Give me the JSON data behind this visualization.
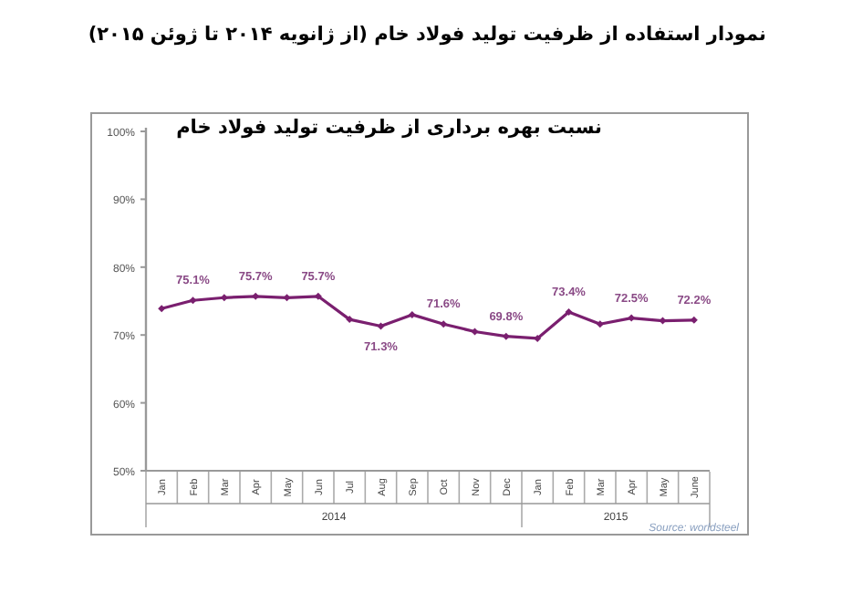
{
  "chart_data": {
    "type": "line",
    "title": "نمودار استفاده از ظرفیت تولید فولاد خام (از ژانویه ۲۰۱۴ تا ژوئن ۲۰۱۵)",
    "subtitle": "نسبت بهره برداری از ظرفیت تولید فولاد خام",
    "categories": [
      "Jan",
      "Feb",
      "Mar",
      "Apr",
      "May",
      "Jun",
      "Jul",
      "Aug",
      "Sep",
      "Oct",
      "Nov",
      "Dec",
      "Jan",
      "Feb",
      "Mar",
      "Apr",
      "May",
      "June"
    ],
    "series": [
      {
        "color": "#7a1f6f",
        "values": [
          73.9,
          75.1,
          75.5,
          75.7,
          75.5,
          75.7,
          72.3,
          71.3,
          73.0,
          71.6,
          70.5,
          69.8,
          69.5,
          73.4,
          71.6,
          72.5,
          72.1,
          72.2
        ],
        "value_labels": [
          null,
          "75.1%",
          null,
          "75.7%",
          null,
          "75.7%",
          null,
          "71.3%",
          null,
          "71.6%",
          null,
          "69.8%",
          null,
          "73.4%",
          null,
          "72.5%",
          null,
          "72.2%"
        ]
      }
    ],
    "ylim": [
      50,
      100
    ],
    "yticks": [
      {
        "value": 50,
        "label": "50%"
      },
      {
        "value": 60,
        "label": "60%"
      },
      {
        "value": 70,
        "label": "70%"
      },
      {
        "value": 80,
        "label": "80%"
      },
      {
        "value": 90,
        "label": "90%"
      },
      {
        "value": 100,
        "label": "100%"
      }
    ],
    "marker": "diamond",
    "grid": false,
    "annotations": [
      "2014",
      "2015",
      "Source: worldsteel"
    ]
  }
}
